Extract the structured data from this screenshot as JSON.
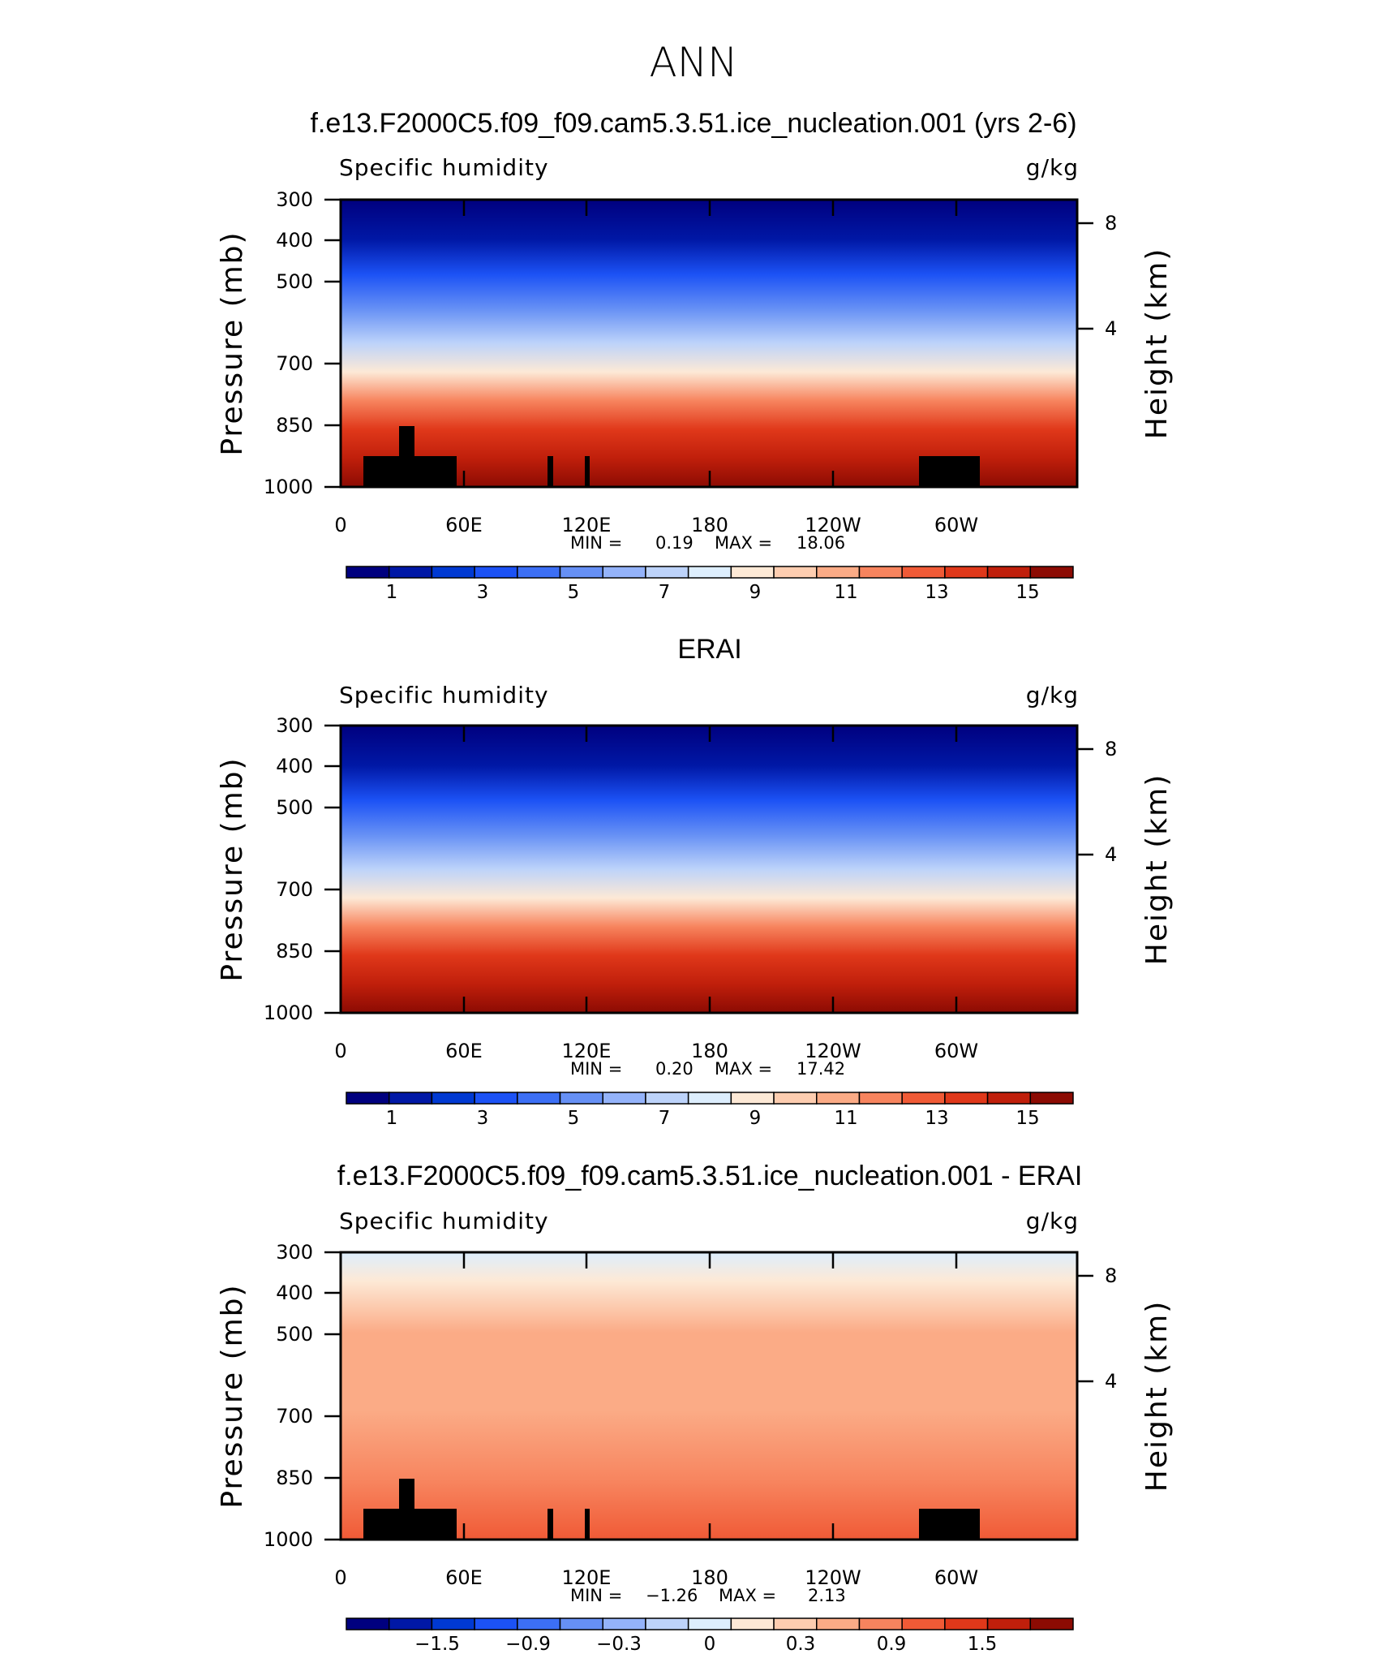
{
  "season": "ANN",
  "colors": {
    "absolute_scale": [
      "#00007f",
      "#0018a6",
      "#0039d2",
      "#1c52f5",
      "#3c6ff5",
      "#6690f5",
      "#94b3fa",
      "#bdd3fa",
      "#ddeefd",
      "#fde9d6",
      "#fdcdb0",
      "#fbab86",
      "#f7845e",
      "#f05a36",
      "#e0381a",
      "#c01f0b",
      "#8c0b03"
    ],
    "difference_scale": [
      "#00007f",
      "#0018a6",
      "#0039d2",
      "#1c52f5",
      "#3c6ff5",
      "#6690f5",
      "#94b3fa",
      "#bdd3fa",
      "#ddeefd",
      "#fde9d6",
      "#fdcdb0",
      "#fbab86",
      "#f7845e",
      "#f05a36",
      "#e0381a",
      "#c01f0b",
      "#8c0b03"
    ],
    "terrain": "#000000"
  },
  "chart_data": [
    {
      "type": "heatmap",
      "title": "f.e13.F2000C5.f09_f09.cam5.3.51.ice_nucleation.001 (yrs 2-6)",
      "left_label": "Specific humidity",
      "right_label": "g/kg",
      "ylabel": "Pressure (mb)",
      "ylabel_right": "Height (km)",
      "x_ticks": [
        "0",
        "60E",
        "120E",
        "180",
        "120W",
        "60W"
      ],
      "y_ticks": [
        "300",
        "400",
        "500",
        "700",
        "850",
        "1000"
      ],
      "y2_ticks": [
        "8",
        "4"
      ],
      "stats": {
        "min_label": "MIN =",
        "min": "0.19",
        "max_label": "MAX =",
        "max": "18.06"
      },
      "colorbar_labels": [
        "1",
        "3",
        "5",
        "7",
        "9",
        "11",
        "13",
        "15"
      ]
    },
    {
      "type": "heatmap",
      "title": "ERAI",
      "left_label": "Specific humidity",
      "right_label": "g/kg",
      "ylabel": "Pressure (mb)",
      "ylabel_right": "Height (km)",
      "x_ticks": [
        "0",
        "60E",
        "120E",
        "180",
        "120W",
        "60W"
      ],
      "y_ticks": [
        "300",
        "400",
        "500",
        "700",
        "850",
        "1000"
      ],
      "y2_ticks": [
        "8",
        "4"
      ],
      "stats": {
        "min_label": "MIN =",
        "min": "0.20",
        "max_label": "MAX =",
        "max": "17.42"
      },
      "colorbar_labels": [
        "1",
        "3",
        "5",
        "7",
        "9",
        "11",
        "13",
        "15"
      ]
    },
    {
      "type": "heatmap",
      "title": "f.e13.F2000C5.f09_f09.cam5.3.51.ice_nucleation.001 - ERAI",
      "left_label": "Specific humidity",
      "right_label": "g/kg",
      "ylabel": "Pressure (mb)",
      "ylabel_right": "Height (km)",
      "x_ticks": [
        "0",
        "60E",
        "120E",
        "180",
        "120W",
        "60W"
      ],
      "y_ticks": [
        "300",
        "400",
        "500",
        "700",
        "850",
        "1000"
      ],
      "y2_ticks": [
        "8",
        "4"
      ],
      "stats": {
        "min_label": "MIN =",
        "min": "−1.26",
        "max_label": "MAX =",
        "max": "2.13"
      },
      "colorbar_labels": [
        "−1.5",
        "−0.9",
        "−0.3",
        "0",
        "0.3",
        "0.9",
        "1.5"
      ]
    }
  ]
}
